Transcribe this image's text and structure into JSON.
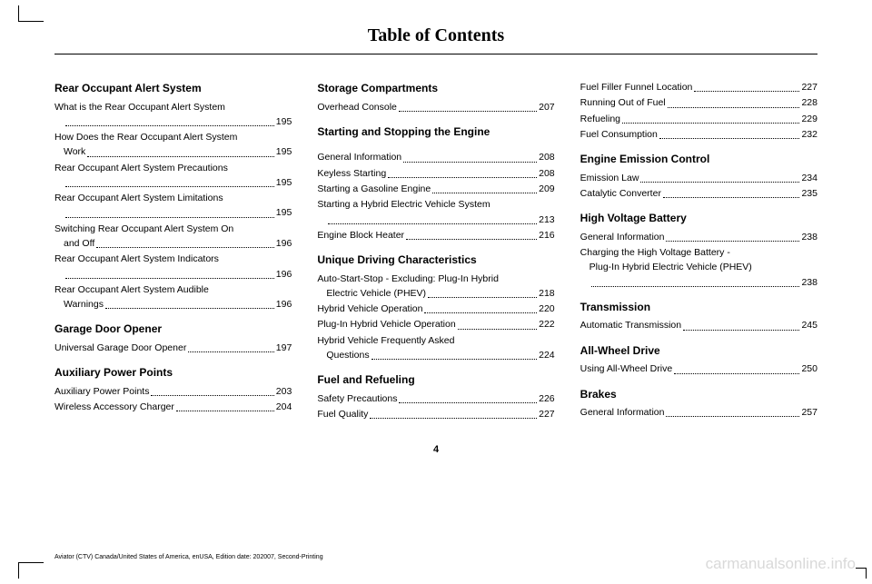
{
  "title": "Table of Contents",
  "page_num": "4",
  "footer": "Aviator (CTV) Canada/United States of America, enUSA, Edition date: 202007, Second-Printing",
  "watermark": "carmanualsonline.info",
  "cols": [
    [
      {
        "type": "head",
        "t": "Rear Occupant Alert System"
      },
      {
        "type": "entry",
        "l1": "What is the Rear Occupant Alert System",
        "l2": "",
        "p": "195"
      },
      {
        "type": "entry",
        "l1": "How Does the Rear Occupant Alert System",
        "l2": "Work ",
        "p": "195"
      },
      {
        "type": "entry",
        "l1": "Rear Occupant Alert System Precautions",
        "l2": "",
        "p": "195"
      },
      {
        "type": "entry",
        "l1": "Rear Occupant Alert System Limitations",
        "l2": "",
        "p": "195"
      },
      {
        "type": "entry",
        "l1": "Switching Rear Occupant Alert System On",
        "l2": "and Off ",
        "p": "196"
      },
      {
        "type": "entry",
        "l1": "Rear Occupant Alert System Indicators",
        "l2": "",
        "p": "196"
      },
      {
        "type": "entry",
        "l1": "Rear Occupant Alert System Audible",
        "l2": "Warnings ",
        "p": "196"
      },
      {
        "type": "head",
        "t": "Garage Door Opener"
      },
      {
        "type": "entry",
        "l1": "Universal Garage Door Opener ",
        "p": "197"
      },
      {
        "type": "head",
        "t": "Auxiliary Power Points"
      },
      {
        "type": "entry",
        "l1": "Auxiliary Power Points ",
        "p": "203"
      },
      {
        "type": "entry",
        "l1": "Wireless Accessory Charger ",
        "p": "204"
      }
    ],
    [
      {
        "type": "head",
        "t": "Storage Compartments"
      },
      {
        "type": "entry",
        "l1": "Overhead Console ",
        "p": "207"
      },
      {
        "type": "head",
        "t": "Starting and Stopping the Engine"
      },
      {
        "type": "spacer"
      },
      {
        "type": "entry",
        "l1": "General Information ",
        "p": "208"
      },
      {
        "type": "entry",
        "l1": "Keyless Starting ",
        "p": "208"
      },
      {
        "type": "entry",
        "l1": "Starting a Gasoline Engine ",
        "p": "209"
      },
      {
        "type": "entry",
        "l1": "Starting a Hybrid Electric Vehicle System",
        "l2": "",
        "p": "213"
      },
      {
        "type": "entry",
        "l1": "Engine Block Heater ",
        "p": "216"
      },
      {
        "type": "head",
        "t": "Unique Driving Characteristics"
      },
      {
        "type": "entry",
        "l1": "Auto-Start-Stop - Excluding: Plug-In Hybrid",
        "l2": "Electric Vehicle (PHEV) ",
        "p": "218"
      },
      {
        "type": "entry",
        "l1": "Hybrid Vehicle Operation ",
        "p": "220"
      },
      {
        "type": "entry",
        "l1": "Plug-In Hybrid Vehicle Operation ",
        "p": "222"
      },
      {
        "type": "entry",
        "l1": "Hybrid Vehicle Frequently Asked",
        "l2": "Questions ",
        "p": "224"
      },
      {
        "type": "head",
        "t": "Fuel and Refueling"
      },
      {
        "type": "entry",
        "l1": "Safety Precautions ",
        "p": "226"
      },
      {
        "type": "entry",
        "l1": "Fuel Quality ",
        "p": "227"
      }
    ],
    [
      {
        "type": "entry",
        "l1": "Fuel Filler Funnel Location ",
        "p": "227"
      },
      {
        "type": "entry",
        "l1": "Running Out of Fuel ",
        "p": "228"
      },
      {
        "type": "entry",
        "l1": "Refueling ",
        "p": "229"
      },
      {
        "type": "entry",
        "l1": "Fuel Consumption ",
        "p": "232"
      },
      {
        "type": "head",
        "t": "Engine Emission Control"
      },
      {
        "type": "entry",
        "l1": "Emission Law ",
        "p": "234"
      },
      {
        "type": "entry",
        "l1": "Catalytic Converter ",
        "p": "235"
      },
      {
        "type": "head",
        "t": "High Voltage Battery"
      },
      {
        "type": "entry",
        "l1": "General Information ",
        "p": "238"
      },
      {
        "type": "entry",
        "l1": "Charging the High Voltage Battery -",
        "l2": "Plug-In Hybrid Electric Vehicle (PHEV)",
        "l3": "",
        "p": "238"
      },
      {
        "type": "head",
        "t": "Transmission"
      },
      {
        "type": "entry",
        "l1": "Automatic Transmission ",
        "p": "245"
      },
      {
        "type": "head",
        "t": "All-Wheel Drive"
      },
      {
        "type": "entry",
        "l1": "Using All-Wheel Drive ",
        "p": "250"
      },
      {
        "type": "head",
        "t": "Brakes"
      },
      {
        "type": "entry",
        "l1": "General Information ",
        "p": "257"
      }
    ]
  ]
}
